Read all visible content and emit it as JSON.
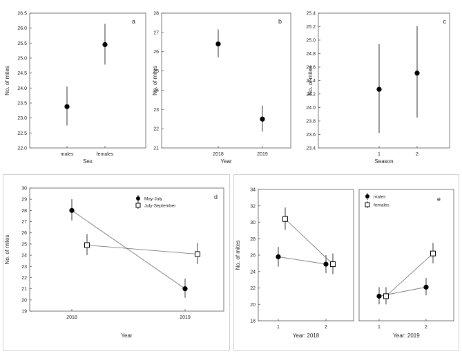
{
  "chart_data": [
    {
      "panel_label": "a",
      "type": "scatter",
      "xlabel": "Sex",
      "ylabel": "No. of mites",
      "categories": [
        "males",
        "females"
      ],
      "ylim": [
        22.0,
        26.5
      ],
      "yticks": [
        "22.0",
        "22.5",
        "23.0",
        "23.5",
        "24.0",
        "24.5",
        "25.0",
        "25.5",
        "26.0",
        "26.5"
      ],
      "grid": false,
      "series": [
        {
          "marker": "circle",
          "values": [
            23.38,
            25.45
          ],
          "ci_low": [
            22.75,
            24.78
          ],
          "ci_high": [
            24.05,
            26.14
          ]
        }
      ]
    },
    {
      "panel_label": "b",
      "type": "scatter",
      "xlabel": "Year",
      "ylabel": "No. of mites",
      "categories": [
        "2018",
        "2019"
      ],
      "ylim": [
        21,
        28
      ],
      "yticks": [
        "21",
        "22",
        "23",
        "24",
        "25",
        "26",
        "27",
        "28"
      ],
      "grid": false,
      "series": [
        {
          "marker": "circle",
          "values": [
            26.4,
            22.5
          ],
          "ci_low": [
            25.7,
            21.85
          ],
          "ci_high": [
            27.15,
            23.2
          ]
        }
      ]
    },
    {
      "panel_label": "c",
      "type": "scatter",
      "xlabel": "Season",
      "ylabel": "No. of mites",
      "categories": [
        "1",
        "2"
      ],
      "ylim": [
        23.4,
        25.4
      ],
      "yticks": [
        "23.4",
        "23.6",
        "23.8",
        "24.0",
        "24.2",
        "24.4",
        "24.6",
        "24.8",
        "25.0",
        "25.2",
        "25.4"
      ],
      "grid": false,
      "series": [
        {
          "marker": "circle",
          "values": [
            24.27,
            24.51
          ],
          "ci_low": [
            23.62,
            23.85
          ],
          "ci_high": [
            24.94,
            25.21
          ]
        }
      ]
    },
    {
      "panel_label": "d",
      "type": "line",
      "xlabel": "Year",
      "ylabel": "No. of mites",
      "categories": [
        "2018",
        "2019"
      ],
      "ylim": [
        19,
        30
      ],
      "yticks": [
        "19",
        "20",
        "21",
        "22",
        "23",
        "24",
        "25",
        "26",
        "27",
        "28",
        "29",
        "30"
      ],
      "grid": false,
      "legend_position": "top-right",
      "series": [
        {
          "name": "May-July",
          "marker": "circle",
          "values": [
            28.0,
            21.0
          ],
          "ci_low": [
            27.1,
            20.2
          ],
          "ci_high": [
            29.0,
            21.9
          ]
        },
        {
          "name": "July-September",
          "marker": "square",
          "values": [
            24.9,
            24.1
          ],
          "ci_low": [
            24.0,
            23.2
          ],
          "ci_high": [
            25.9,
            25.1
          ]
        }
      ]
    },
    {
      "panel_label": "",
      "type": "line",
      "xlabel": "Year: 2018",
      "ylabel": "No. of mites",
      "categories": [
        "1",
        "2"
      ],
      "ylim": [
        18,
        34
      ],
      "yticks": [
        "18",
        "20",
        "22",
        "24",
        "26",
        "28",
        "30",
        "32",
        "34"
      ],
      "grid": false,
      "series": [
        {
          "name": "males",
          "marker": "circle",
          "values": [
            25.8,
            24.9
          ],
          "ci_low": [
            24.6,
            23.8
          ],
          "ci_high": [
            27.0,
            26.0
          ]
        },
        {
          "name": "females",
          "marker": "square",
          "values": [
            30.4,
            24.9
          ],
          "ci_low": [
            29.1,
            23.7
          ],
          "ci_high": [
            31.8,
            26.2
          ]
        }
      ]
    },
    {
      "panel_label": "e",
      "type": "line",
      "xlabel": "Year: 2019",
      "ylabel": "",
      "categories": [
        "1",
        "2"
      ],
      "ylim": [
        18,
        34
      ],
      "yticks": [],
      "grid": false,
      "legend_position": "top-left",
      "series": [
        {
          "name": "males",
          "marker": "circle",
          "values": [
            21.0,
            22.1
          ],
          "ci_low": [
            20.0,
            21.1
          ],
          "ci_high": [
            22.1,
            23.2
          ]
        },
        {
          "name": "females",
          "marker": "square",
          "values": [
            21.0,
            26.2
          ],
          "ci_low": [
            20.0,
            25.0
          ],
          "ci_high": [
            22.1,
            27.5
          ]
        }
      ]
    }
  ]
}
